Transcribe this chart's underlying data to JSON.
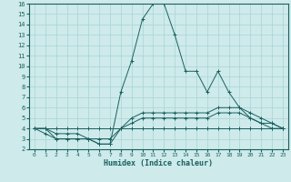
{
  "xlabel": "Humidex (Indice chaleur)",
  "bg_color": "#ceeaea",
  "grid_color": "#a8d4d4",
  "line_color": "#1a6060",
  "xlim": [
    -0.5,
    23.5
  ],
  "ylim": [
    2,
    16
  ],
  "xticks": [
    0,
    1,
    2,
    3,
    4,
    5,
    6,
    7,
    8,
    9,
    10,
    11,
    12,
    13,
    14,
    15,
    16,
    17,
    18,
    19,
    20,
    21,
    22,
    23
  ],
  "yticks": [
    2,
    3,
    4,
    5,
    6,
    7,
    8,
    9,
    10,
    11,
    12,
    13,
    14,
    15,
    16
  ],
  "series": [
    {
      "x": [
        0,
        1,
        2,
        3,
        4,
        5,
        6,
        7,
        8,
        9,
        10,
        11,
        12,
        13,
        14,
        15,
        16,
        17,
        18,
        19,
        20,
        21,
        22,
        23
      ],
      "y": [
        4,
        3.5,
        3,
        3,
        3,
        3,
        2.5,
        2.5,
        7.5,
        10.5,
        14.5,
        16,
        16,
        13,
        9.5,
        9.5,
        7.5,
        9.5,
        7.5,
        6,
        5,
        4.5,
        4.5,
        4
      ]
    },
    {
      "x": [
        0,
        1,
        2,
        3,
        4,
        5,
        6,
        7,
        8,
        9,
        10,
        11,
        12,
        13,
        14,
        15,
        16,
        17,
        18,
        19,
        20,
        21,
        22,
        23
      ],
      "y": [
        4,
        4,
        3.5,
        3.5,
        3.5,
        3,
        3,
        3,
        4,
        5,
        5.5,
        5.5,
        5.5,
        5.5,
        5.5,
        5.5,
        5.5,
        6,
        6,
        6,
        5.5,
        5,
        4.5,
        4
      ]
    },
    {
      "x": [
        0,
        1,
        2,
        3,
        4,
        5,
        6,
        7,
        8,
        9,
        10,
        11,
        12,
        13,
        14,
        15,
        16,
        17,
        18,
        19,
        20,
        21,
        22,
        23
      ],
      "y": [
        4,
        4,
        3,
        3,
        3,
        3,
        2.5,
        2.5,
        4,
        4.5,
        5,
        5,
        5,
        5,
        5,
        5,
        5,
        5.5,
        5.5,
        5.5,
        5,
        4.5,
        4,
        4
      ]
    },
    {
      "x": [
        0,
        1,
        2,
        3,
        4,
        5,
        6,
        7,
        8,
        9,
        10,
        11,
        12,
        13,
        14,
        15,
        16,
        17,
        18,
        19,
        20,
        21,
        22,
        23
      ],
      "y": [
        4,
        4,
        4,
        4,
        4,
        4,
        4,
        4,
        4,
        4,
        4,
        4,
        4,
        4,
        4,
        4,
        4,
        4,
        4,
        4,
        4,
        4,
        4,
        4
      ]
    }
  ]
}
